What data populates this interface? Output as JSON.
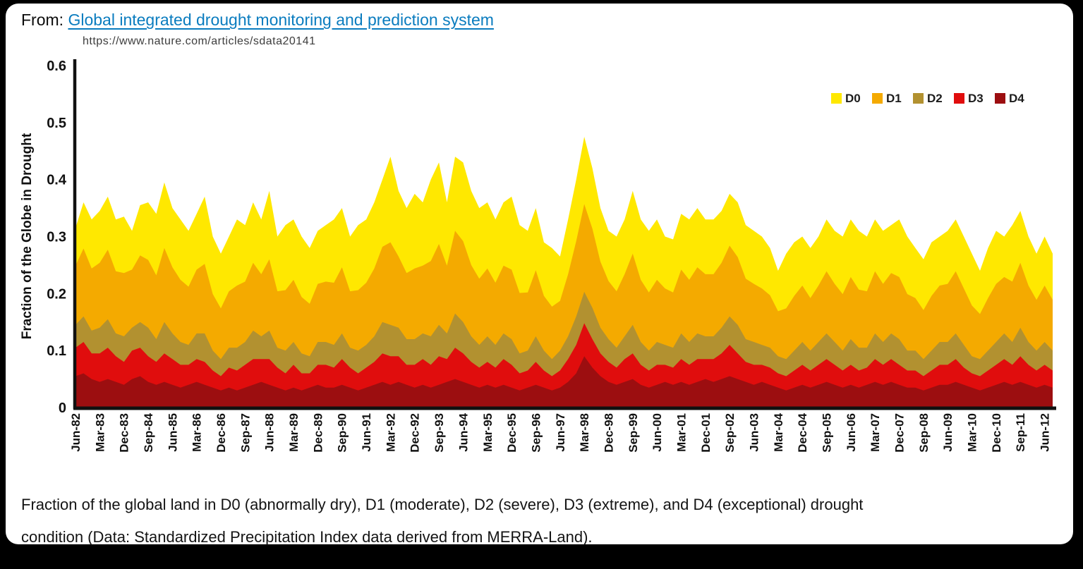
{
  "header": {
    "from_label": "From:",
    "link_text": "Global integrated drought monitoring and prediction system",
    "url_text": "https://www.nature.com/articles/sdata20141",
    "link_color": "#0a7cbf"
  },
  "caption": {
    "line1": "Fraction of the global land in D0 (abnormally dry), D1 (moderate), D2 (severe), D3 (extreme), and D4 (exceptional) drought",
    "line2": "condition (Data: Standardized Precipitation Index data derived from MERRA-Land)."
  },
  "chart_data": {
    "type": "area",
    "stacked": true,
    "title": "",
    "xlabel": "",
    "ylabel": "Fraction of the Globe in Drought",
    "ylim": [
      0,
      0.6
    ],
    "y_ticks": [
      0,
      0.1,
      0.2,
      0.3,
      0.4,
      0.5,
      0.6
    ],
    "grid": false,
    "legend_position": "top-right-inside",
    "sampling": "quarterly values Jun-1982 to Sep-2012; x tick labels fall on every 3rd point",
    "x_tick_labels": [
      "Jun-82",
      "Mar-83",
      "Dec-83",
      "Sep-84",
      "Jun-85",
      "Mar-86",
      "Dec-86",
      "Sep-87",
      "Jun-88",
      "Mar-89",
      "Dec-89",
      "Sep-90",
      "Jun-91",
      "Mar-92",
      "Dec-92",
      "Sep-93",
      "Jun-94",
      "Mar-95",
      "Dec-95",
      "Sep-96",
      "Jun-97",
      "Mar-98",
      "Dec-98",
      "Sep-99",
      "Jun-00",
      "Mar-01",
      "Dec-01",
      "Sep-02",
      "Jun-03",
      "Mar-04",
      "Dec-04",
      "Sep-05",
      "Jun-06",
      "Mar-07",
      "Dec-07",
      "Sep-08",
      "Jun-09",
      "Mar-10",
      "Dec-10",
      "Sep-11",
      "Jun-12"
    ],
    "stack_order_bottom_to_top": [
      "D4",
      "D3",
      "D2",
      "D1",
      "D0"
    ],
    "axis_color": "#111111",
    "series": [
      {
        "name": "D0",
        "color": "#FFE800",
        "values": [
          0.066,
          0.081,
          0.086,
          0.091,
          0.093,
          0.091,
          0.099,
          0.068,
          0.088,
          0.101,
          0.108,
          0.115,
          0.104,
          0.106,
          0.098,
          0.098,
          0.118,
          0.101,
          0.096,
          0.096,
          0.116,
          0.099,
          0.106,
          0.096,
          0.12,
          0.096,
          0.114,
          0.106,
          0.106,
          0.098,
          0.093,
          0.099,
          0.111,
          0.104,
          0.096,
          0.114,
          0.111,
          0.116,
          0.118,
          0.15,
          0.115,
          0.114,
          0.131,
          0.111,
          0.143,
          0.143,
          0.111,
          0.13,
          0.138,
          0.13,
          0.124,
          0.116,
          0.111,
          0.111,
          0.128,
          0.119,
          0.108,
          0.109,
          0.094,
          0.103,
          0.078,
          0.096,
          0.108,
          0.118,
          0.106,
          0.094,
          0.088,
          0.096,
          0.096,
          0.11,
          0.106,
          0.108,
          0.106,
          0.091,
          0.093,
          0.098,
          0.106,
          0.104,
          0.096,
          0.096,
          0.091,
          0.091,
          0.096,
          0.094,
          0.093,
          0.091,
          0.083,
          0.071,
          0.096,
          0.094,
          0.086,
          0.088,
          0.086,
          0.091,
          0.093,
          0.101,
          0.101,
          0.103,
          0.096,
          0.091,
          0.093,
          0.084,
          0.101,
          0.101,
          0.088,
          0.089,
          0.094,
          0.086,
          0.093,
          0.091,
          0.091,
          0.091,
          0.076,
          0.088,
          0.093,
          0.071,
          0.099,
          0.091,
          0.086,
          0.081,
          0.086,
          0.081
        ]
      },
      {
        "name": "D1",
        "color": "#F4AA00",
        "values": [
          0.104,
          0.119,
          0.109,
          0.114,
          0.122,
          0.109,
          0.111,
          0.102,
          0.117,
          0.119,
          0.112,
          0.13,
          0.116,
          0.109,
          0.102,
          0.112,
          0.122,
          0.099,
          0.089,
          0.099,
          0.109,
          0.106,
          0.119,
          0.109,
          0.125,
          0.099,
          0.106,
          0.109,
          0.099,
          0.092,
          0.102,
          0.106,
          0.109,
          0.116,
          0.099,
          0.106,
          0.109,
          0.119,
          0.132,
          0.145,
          0.125,
          0.116,
          0.124,
          0.119,
          0.132,
          0.142,
          0.119,
          0.145,
          0.142,
          0.125,
          0.116,
          0.119,
          0.109,
          0.119,
          0.122,
          0.106,
          0.102,
          0.116,
          0.096,
          0.092,
          0.087,
          0.109,
          0.132,
          0.154,
          0.139,
          0.116,
          0.102,
          0.099,
          0.109,
          0.125,
          0.109,
          0.102,
          0.109,
          0.099,
          0.097,
          0.112,
          0.109,
          0.116,
          0.109,
          0.109,
          0.114,
          0.124,
          0.119,
          0.106,
          0.102,
          0.099,
          0.092,
          0.079,
          0.089,
          0.096,
          0.099,
          0.092,
          0.099,
          0.109,
          0.102,
          0.099,
          0.109,
          0.102,
          0.099,
          0.109,
          0.102,
          0.106,
          0.109,
          0.099,
          0.092,
          0.086,
          0.096,
          0.099,
          0.102,
          0.109,
          0.099,
          0.089,
          0.079,
          0.092,
          0.102,
          0.099,
          0.106,
          0.114,
          0.099,
          0.089,
          0.099,
          0.089
        ]
      },
      {
        "name": "D2",
        "color": "#B29130",
        "values": [
          0.04,
          0.045,
          0.04,
          0.045,
          0.05,
          0.04,
          0.045,
          0.04,
          0.045,
          0.05,
          0.04,
          0.055,
          0.045,
          0.04,
          0.035,
          0.045,
          0.05,
          0.035,
          0.03,
          0.035,
          0.04,
          0.04,
          0.05,
          0.04,
          0.05,
          0.035,
          0.04,
          0.04,
          0.035,
          0.03,
          0.04,
          0.04,
          0.04,
          0.045,
          0.035,
          0.04,
          0.04,
          0.045,
          0.055,
          0.055,
          0.05,
          0.045,
          0.045,
          0.045,
          0.05,
          0.055,
          0.045,
          0.06,
          0.055,
          0.045,
          0.04,
          0.045,
          0.04,
          0.045,
          0.045,
          0.035,
          0.035,
          0.045,
          0.035,
          0.03,
          0.035,
          0.04,
          0.05,
          0.055,
          0.055,
          0.045,
          0.04,
          0.035,
          0.04,
          0.05,
          0.04,
          0.035,
          0.04,
          0.035,
          0.035,
          0.045,
          0.04,
          0.045,
          0.04,
          0.04,
          0.045,
          0.05,
          0.05,
          0.04,
          0.04,
          0.035,
          0.035,
          0.03,
          0.03,
          0.035,
          0.04,
          0.035,
          0.04,
          0.045,
          0.04,
          0.035,
          0.045,
          0.04,
          0.035,
          0.045,
          0.04,
          0.045,
          0.045,
          0.035,
          0.035,
          0.03,
          0.035,
          0.04,
          0.04,
          0.045,
          0.04,
          0.03,
          0.03,
          0.035,
          0.04,
          0.045,
          0.04,
          0.05,
          0.04,
          0.035,
          0.04,
          0.035
        ]
      },
      {
        "name": "D3",
        "color": "#E00D0D",
        "values": [
          0.05,
          0.055,
          0.045,
          0.05,
          0.055,
          0.045,
          0.04,
          0.05,
          0.05,
          0.045,
          0.04,
          0.05,
          0.045,
          0.04,
          0.035,
          0.04,
          0.04,
          0.03,
          0.025,
          0.035,
          0.035,
          0.04,
          0.045,
          0.04,
          0.045,
          0.035,
          0.03,
          0.04,
          0.03,
          0.025,
          0.035,
          0.04,
          0.035,
          0.045,
          0.035,
          0.03,
          0.035,
          0.04,
          0.05,
          0.05,
          0.045,
          0.035,
          0.04,
          0.045,
          0.04,
          0.05,
          0.04,
          0.055,
          0.05,
          0.04,
          0.035,
          0.04,
          0.035,
          0.045,
          0.04,
          0.03,
          0.03,
          0.04,
          0.03,
          0.025,
          0.03,
          0.04,
          0.05,
          0.058,
          0.05,
          0.04,
          0.035,
          0.03,
          0.04,
          0.045,
          0.035,
          0.03,
          0.035,
          0.03,
          0.03,
          0.04,
          0.035,
          0.04,
          0.035,
          0.04,
          0.045,
          0.055,
          0.045,
          0.035,
          0.035,
          0.03,
          0.03,
          0.025,
          0.025,
          0.03,
          0.035,
          0.03,
          0.035,
          0.04,
          0.035,
          0.03,
          0.035,
          0.03,
          0.03,
          0.04,
          0.035,
          0.04,
          0.035,
          0.03,
          0.03,
          0.025,
          0.03,
          0.035,
          0.035,
          0.04,
          0.03,
          0.025,
          0.025,
          0.03,
          0.035,
          0.04,
          0.035,
          0.045,
          0.035,
          0.03,
          0.035,
          0.03
        ]
      },
      {
        "name": "D4",
        "color": "#9C0E10",
        "values": [
          0.055,
          0.06,
          0.05,
          0.045,
          0.05,
          0.045,
          0.04,
          0.05,
          0.055,
          0.045,
          0.04,
          0.045,
          0.04,
          0.035,
          0.04,
          0.045,
          0.04,
          0.035,
          0.03,
          0.035,
          0.03,
          0.035,
          0.04,
          0.045,
          0.04,
          0.035,
          0.03,
          0.035,
          0.03,
          0.035,
          0.04,
          0.035,
          0.035,
          0.04,
          0.035,
          0.03,
          0.035,
          0.04,
          0.045,
          0.04,
          0.045,
          0.04,
          0.035,
          0.04,
          0.035,
          0.04,
          0.045,
          0.05,
          0.045,
          0.04,
          0.035,
          0.04,
          0.035,
          0.04,
          0.035,
          0.03,
          0.035,
          0.04,
          0.035,
          0.03,
          0.035,
          0.045,
          0.06,
          0.09,
          0.07,
          0.055,
          0.045,
          0.04,
          0.045,
          0.05,
          0.04,
          0.035,
          0.04,
          0.045,
          0.04,
          0.045,
          0.04,
          0.045,
          0.05,
          0.045,
          0.05,
          0.055,
          0.05,
          0.045,
          0.04,
          0.045,
          0.04,
          0.035,
          0.03,
          0.035,
          0.04,
          0.035,
          0.04,
          0.045,
          0.04,
          0.035,
          0.04,
          0.035,
          0.04,
          0.045,
          0.04,
          0.045,
          0.04,
          0.035,
          0.035,
          0.03,
          0.035,
          0.04,
          0.04,
          0.045,
          0.04,
          0.035,
          0.03,
          0.035,
          0.04,
          0.045,
          0.04,
          0.045,
          0.04,
          0.035,
          0.04,
          0.035
        ]
      }
    ]
  }
}
